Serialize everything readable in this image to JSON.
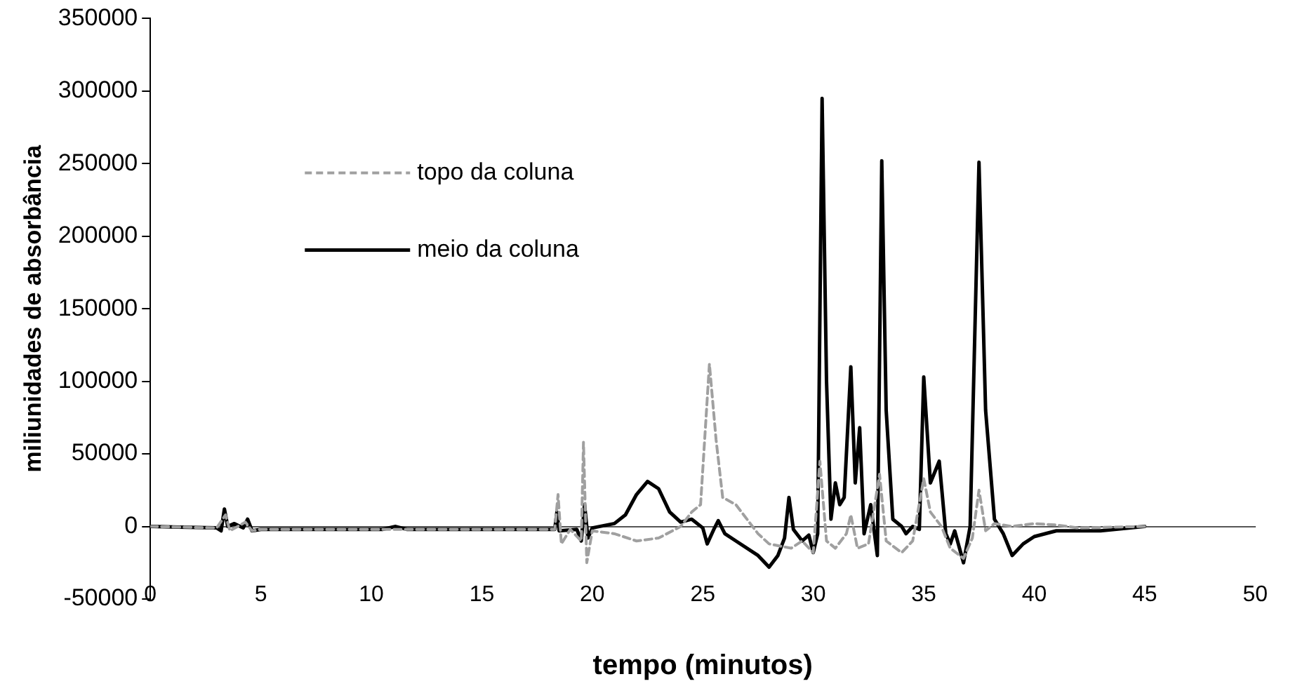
{
  "chart_data": {
    "type": "line",
    "xlabel": "tempo (minutos)",
    "ylabel": "miliunidades de absorbância",
    "xlim": [
      0,
      50
    ],
    "xticks": [
      0,
      5,
      10,
      15,
      20,
      25,
      30,
      35,
      40,
      45,
      50
    ],
    "ylim": [
      -50000,
      350000
    ],
    "yticks": [
      -50000,
      0,
      50000,
      100000,
      150000,
      200000,
      250000,
      300000,
      350000
    ],
    "grid": false,
    "legend": "top left",
    "marker": "none",
    "series": [
      {
        "name": "topo da coluna",
        "color": "#a0a0a0",
        "line_style": "dashed",
        "x": [
          0,
          3,
          3.4,
          3.6,
          4.3,
          4.6,
          5,
          18.3,
          18.45,
          18.6,
          19,
          19.5,
          19.6,
          19.75,
          20,
          21,
          22,
          23,
          24,
          24.5,
          24.9,
          25.3,
          25.6,
          25.9,
          26.5,
          27.5,
          28,
          29,
          29.5,
          30,
          30.3,
          30.6,
          31,
          31.5,
          31.7,
          32,
          32.5,
          33,
          33.3,
          34,
          34.5,
          35,
          35.3,
          35.8,
          36.2,
          36.8,
          37.2,
          37.5,
          37.8,
          38.2,
          39,
          40,
          41,
          42,
          45
        ],
        "values": [
          0,
          -1000,
          8000,
          -3000,
          3000,
          -3000,
          -2000,
          -2000,
          22000,
          -12000,
          -2000,
          -10000,
          58000,
          -25000,
          -3000,
          -5000,
          -10000,
          -8000,
          0,
          10000,
          15000,
          112000,
          60000,
          20000,
          15000,
          -5000,
          -12000,
          -15000,
          -10000,
          -18000,
          45000,
          -10000,
          -15000,
          -5000,
          8000,
          -15000,
          -12000,
          36000,
          -10000,
          -18000,
          -10000,
          33000,
          10000,
          0,
          -15000,
          -22000,
          -8000,
          25000,
          -3000,
          2000,
          0,
          2000,
          1000,
          -1000,
          0
        ]
      },
      {
        "name": "meio da coluna",
        "color": "#000000",
        "line_style": "solid",
        "x": [
          0,
          3,
          3.2,
          3.35,
          3.5,
          3.8,
          4.2,
          4.4,
          4.6,
          5,
          10.5,
          11.1,
          11.6,
          18.3,
          18.4,
          18.5,
          19.3,
          19.5,
          19.65,
          19.8,
          20,
          21,
          21.5,
          22,
          22.5,
          23,
          23.5,
          24,
          24.5,
          25,
          25.2,
          25.5,
          25.7,
          26,
          26.5,
          27.5,
          28,
          28.4,
          28.7,
          28.9,
          29.1,
          29.5,
          29.8,
          30,
          30.2,
          30.4,
          30.6,
          30.8,
          31,
          31.2,
          31.4,
          31.7,
          31.9,
          32.1,
          32.3,
          32.6,
          32.9,
          33.1,
          33.3,
          33.6,
          34,
          34.2,
          34.5,
          34.8,
          35,
          35.3,
          35.7,
          36,
          36.2,
          36.4,
          36.8,
          37.1,
          37.5,
          37.8,
          38.2,
          38.6,
          39,
          39.5,
          40,
          41,
          43,
          45
        ],
        "values": [
          0,
          -1000,
          -3000,
          12000,
          0,
          2000,
          -1000,
          5000,
          -3000,
          -2000,
          -2000,
          0,
          -2000,
          -2000,
          10000,
          -3000,
          -2000,
          -10000,
          15000,
          -8000,
          -1000,
          2000,
          8000,
          22000,
          31000,
          26000,
          10000,
          3000,
          5000,
          -1000,
          -12000,
          -2000,
          4000,
          -5000,
          -10000,
          -20000,
          -28000,
          -20000,
          -8000,
          20000,
          -2000,
          -10000,
          -6000,
          -18000,
          -5000,
          295000,
          100000,
          5000,
          30000,
          15000,
          20000,
          110000,
          30000,
          68000,
          -5000,
          15000,
          -20000,
          252000,
          80000,
          5000,
          0,
          -5000,
          0,
          -2000,
          103000,
          30000,
          45000,
          -5000,
          -12000,
          -3000,
          -25000,
          0,
          251000,
          80000,
          5000,
          -5000,
          -20000,
          -12000,
          -7000,
          -3000,
          -3000,
          0
        ]
      }
    ]
  }
}
